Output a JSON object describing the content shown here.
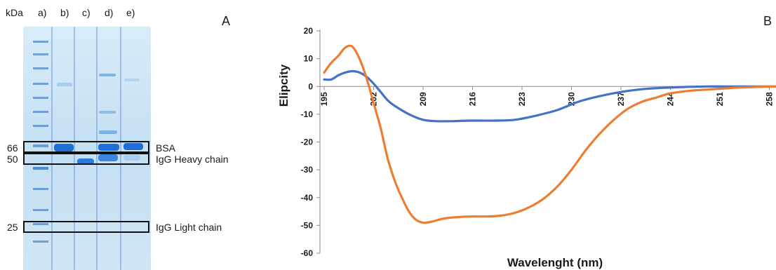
{
  "panelA": {
    "letter": "A",
    "lane_headers": [
      "kDa",
      "a)",
      "b)",
      "c)",
      "d)",
      "e)"
    ],
    "markers": [
      "66",
      "50",
      "25"
    ],
    "band_labels": [
      "BSA",
      "IgG Heavy chain",
      "IgG Light chain"
    ]
  },
  "panelB": {
    "letter": "B"
  },
  "colors": {
    "blue": "#4472C4",
    "orange": "#ED7D31",
    "gel_bg": "#c8e2f3",
    "band": "#1f6fd6"
  },
  "chart_data": {
    "type": "line",
    "xlabel": "Wavelenght (nm)",
    "ylabel": "Elipcity",
    "ylim": [
      -60,
      20
    ],
    "yticks": [
      20,
      10,
      0,
      -10,
      -20,
      -30,
      -40,
      -50,
      -60
    ],
    "xlim": [
      195,
      260
    ],
    "xticks": [
      195,
      202,
      209,
      216,
      223,
      230,
      237,
      244,
      251,
      258
    ],
    "grid": false,
    "legend": "none",
    "series": [
      {
        "color": "#4472C4",
        "x": [
          195,
          196,
          197,
          198,
          199,
          200,
          201,
          202,
          203,
          204,
          205,
          207,
          209,
          211,
          213,
          216,
          219,
          222,
          225,
          228,
          231,
          234,
          237,
          240,
          243,
          246,
          249,
          252,
          255,
          258,
          260
        ],
        "y": [
          2.5,
          2.5,
          4,
          5,
          5.5,
          5,
          3.5,
          1,
          -2,
          -5,
          -7,
          -10,
          -12,
          -12.5,
          -12.5,
          -12.3,
          -12.3,
          -12,
          -10.5,
          -8.5,
          -5.5,
          -3.5,
          -2,
          -1,
          -0.5,
          -0.2,
          0,
          0,
          0,
          0,
          0
        ]
      },
      {
        "color": "#ED7D31",
        "x": [
          195,
          196,
          197,
          198,
          199,
          200,
          201,
          202,
          203,
          204,
          205,
          206,
          207,
          208,
          209,
          210,
          212,
          214,
          216,
          218,
          220,
          222,
          224,
          226,
          228,
          230,
          232,
          234,
          236,
          238,
          240,
          242,
          244,
          247,
          250,
          253,
          256,
          260
        ],
        "y": [
          5,
          8.5,
          11,
          14,
          14.3,
          10,
          3,
          -6,
          -15,
          -26,
          -34,
          -40,
          -45,
          -48,
          -49,
          -48.8,
          -47.5,
          -47,
          -46.8,
          -46.8,
          -46.5,
          -45.5,
          -43.5,
          -40.5,
          -36,
          -30,
          -23,
          -17,
          -12,
          -8,
          -5.5,
          -4,
          -2.5,
          -1.5,
          -1,
          -0.5,
          -0.2,
          0
        ]
      }
    ]
  }
}
